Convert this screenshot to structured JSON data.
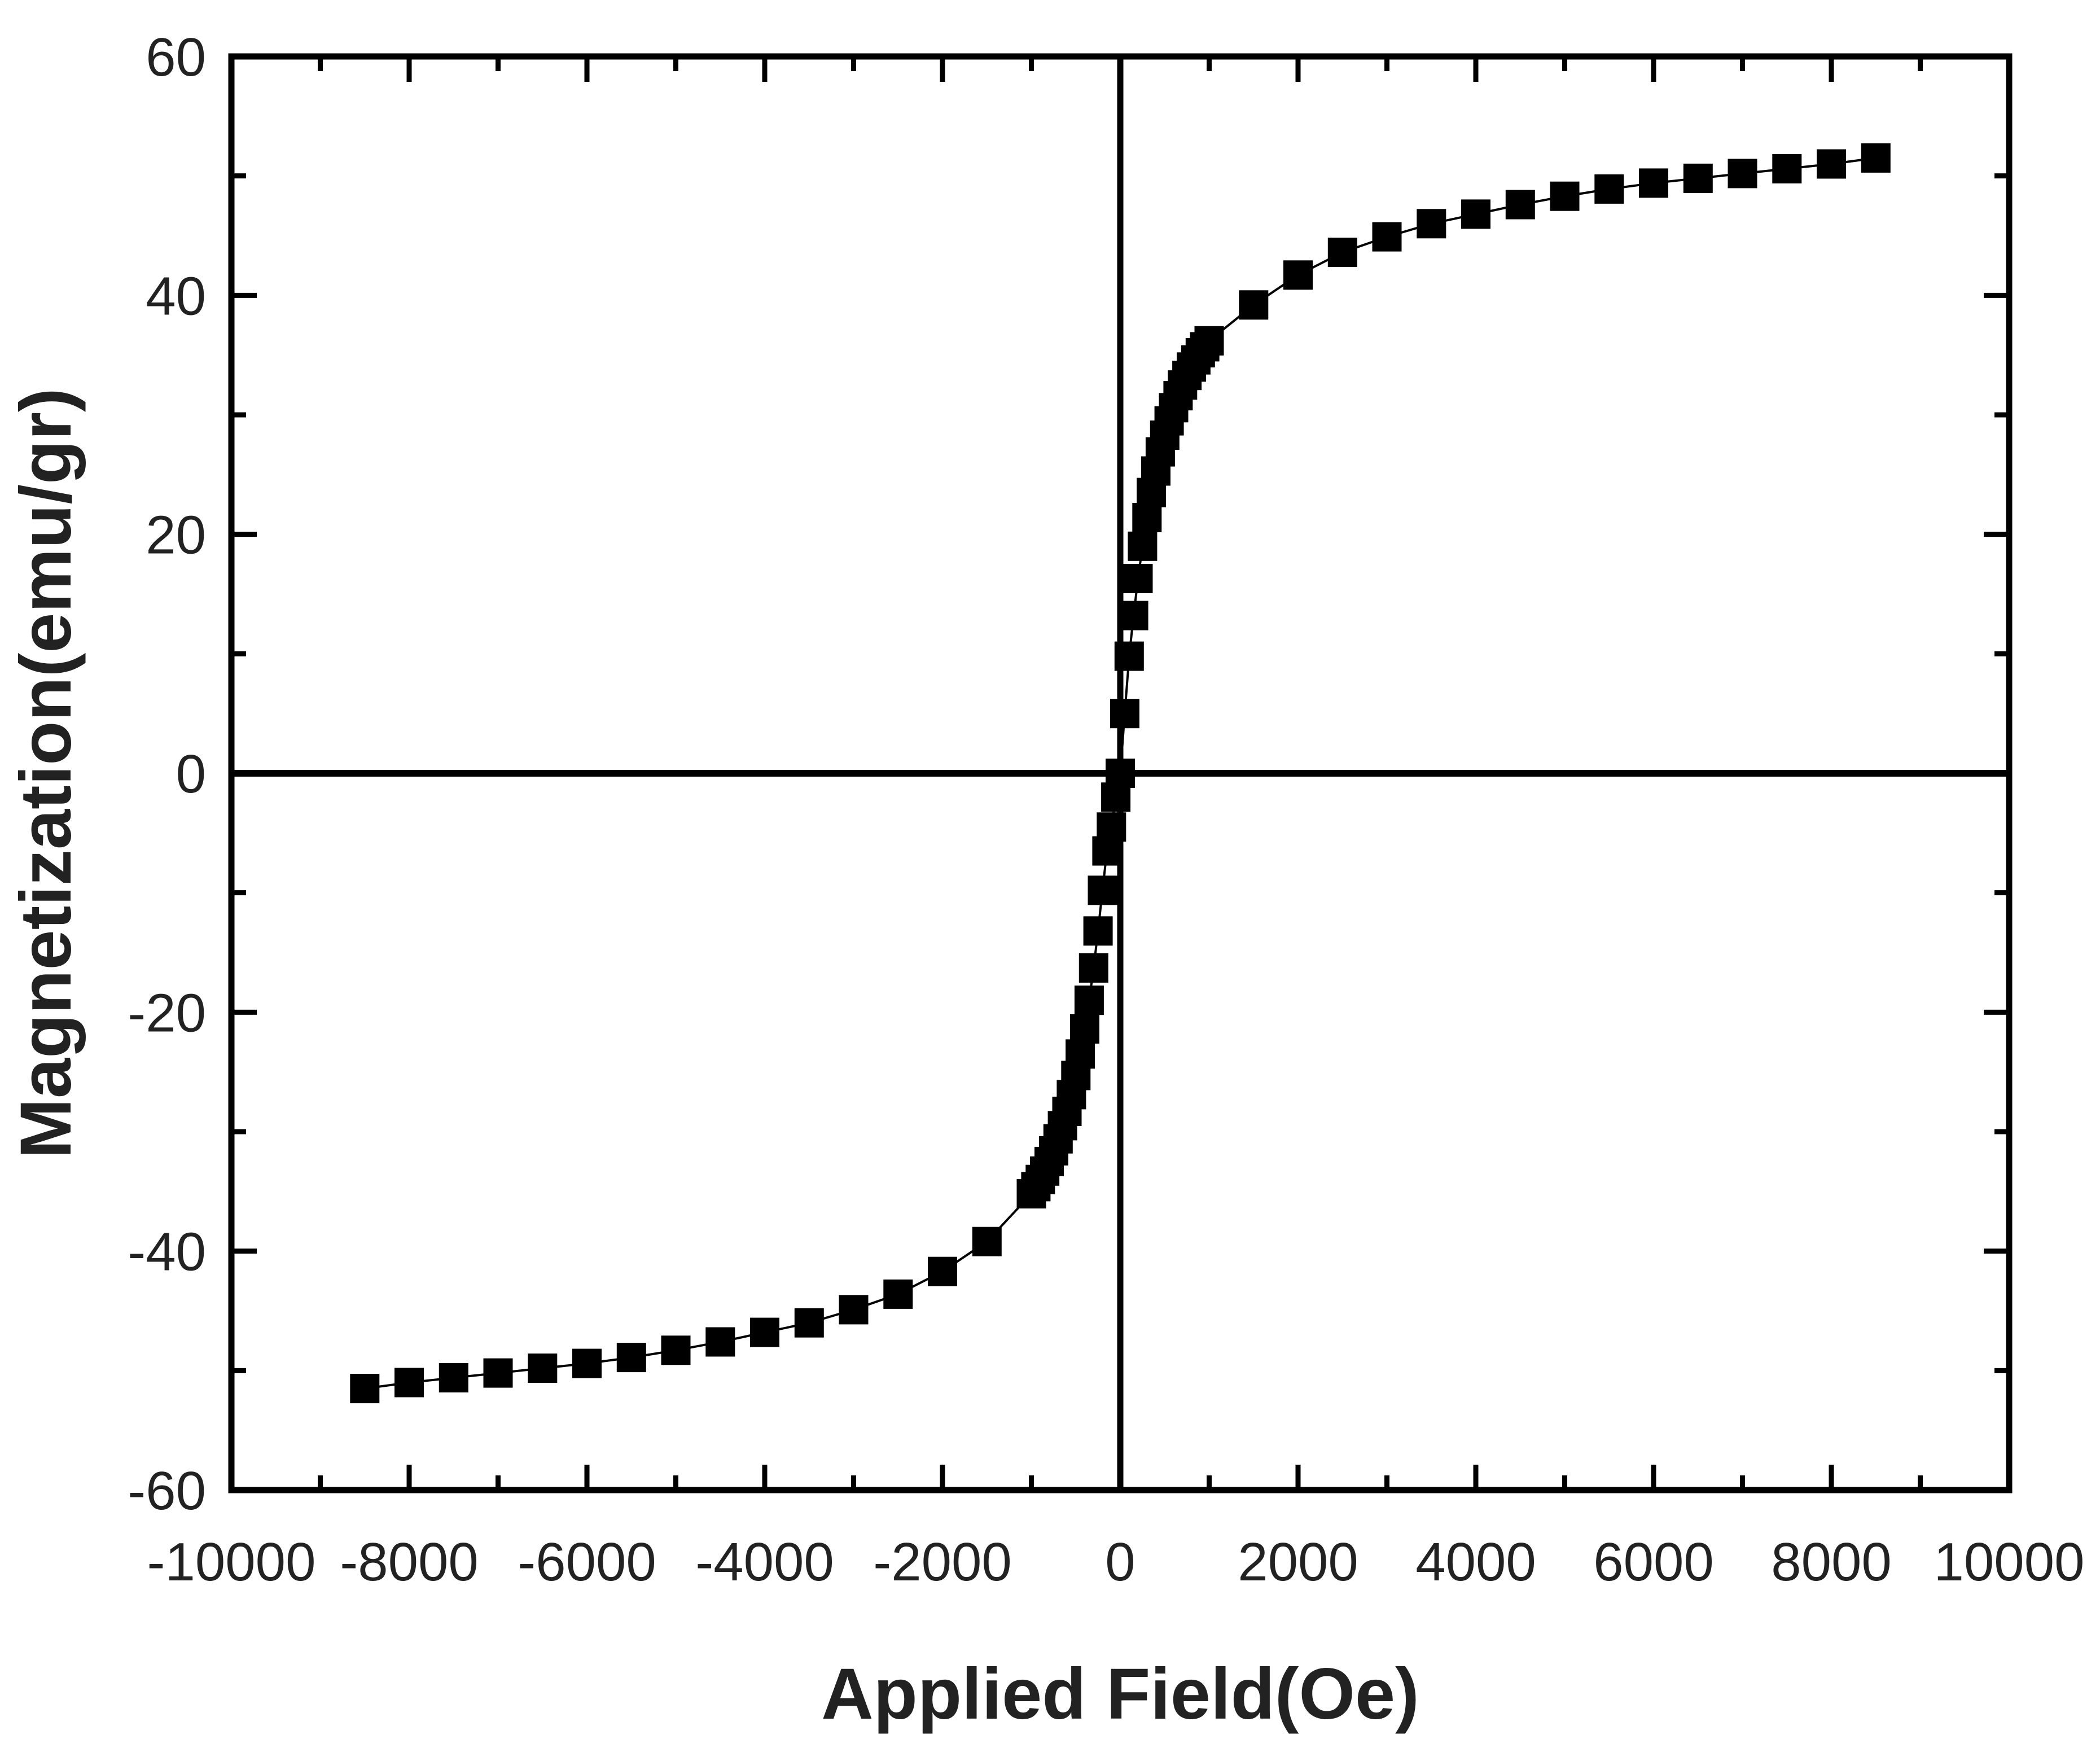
{
  "chart_data": {
    "type": "scatter",
    "title": "",
    "xlabel": "Applied Field(Oe)",
    "ylabel": "Magnetization(emu/gr)",
    "xlim": [
      -10000,
      10000
    ],
    "ylim": [
      -60,
      60
    ],
    "xticks": [
      -10000,
      -8000,
      -6000,
      -4000,
      -2000,
      0,
      2000,
      4000,
      6000,
      8000,
      10000
    ],
    "yticks": [
      -60,
      -40,
      -20,
      0,
      20,
      40,
      60
    ],
    "grid": false,
    "legend": "none",
    "marker": "filled-square",
    "marker_color": "#000000",
    "line": "thin connecting line",
    "series": [
      {
        "x": [
          -8500,
          -8000,
          -7500,
          -7000,
          -6500,
          -6000,
          -5500,
          -5000,
          -4500,
          -4000,
          -3500,
          -3000,
          -2500,
          -2000,
          -1500,
          -1000,
          -950,
          -900,
          -850,
          -800,
          -750,
          -700,
          -650,
          -600,
          -550,
          -500,
          -450,
          -400,
          -350,
          -300,
          -250,
          -200,
          -150,
          -100,
          -50,
          0,
          50,
          100,
          150,
          200,
          250,
          300,
          350,
          400,
          450,
          500,
          550,
          600,
          650,
          700,
          750,
          800,
          850,
          900,
          950,
          1000,
          1500,
          2000,
          2500,
          3000,
          3500,
          4000,
          4500,
          5000,
          5500,
          6000,
          6500,
          7000,
          7500,
          8000,
          8500
        ],
        "y": [
          -51.5,
          -51.0,
          -50.6,
          -50.2,
          -49.8,
          -49.4,
          -48.9,
          -48.3,
          -47.6,
          -46.8,
          -46.0,
          -44.9,
          -43.6,
          -41.7,
          -39.2,
          -35.2,
          -34.6,
          -34.0,
          -33.3,
          -32.5,
          -31.6,
          -30.6,
          -29.5,
          -28.3,
          -26.9,
          -25.3,
          -23.5,
          -21.4,
          -19.0,
          -16.3,
          -13.2,
          -9.8,
          -6.5,
          -4.5,
          -2.0,
          0.0,
          5.0,
          9.8,
          13.2,
          16.3,
          19.0,
          21.4,
          23.5,
          25.3,
          26.9,
          28.3,
          29.5,
          30.6,
          31.6,
          32.5,
          33.3,
          34.0,
          34.6,
          35.2,
          35.7,
          36.2,
          39.2,
          41.7,
          43.6,
          44.9,
          46.0,
          46.8,
          47.6,
          48.3,
          48.9,
          49.4,
          49.8,
          50.2,
          50.6,
          51.0,
          51.5
        ]
      }
    ]
  }
}
